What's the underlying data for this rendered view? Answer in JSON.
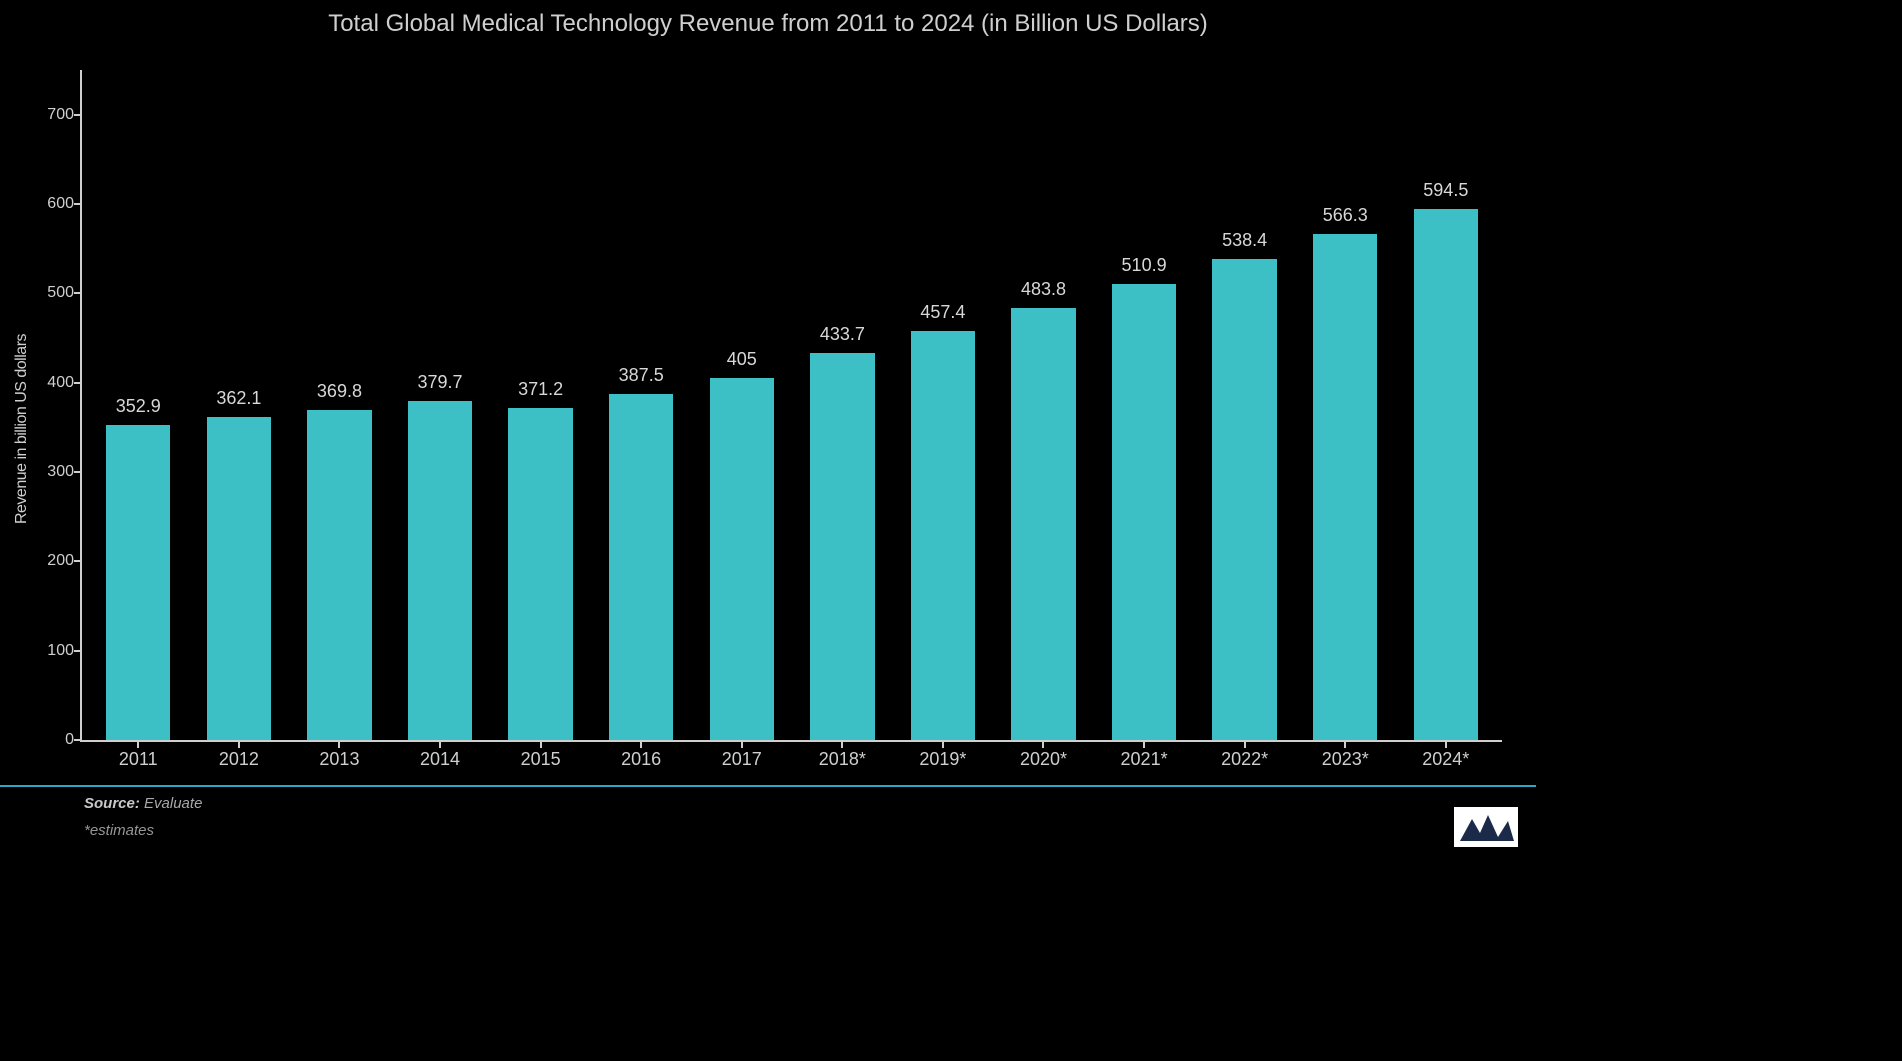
{
  "chart": {
    "type": "bar",
    "title": "Total Global Medical Technology Revenue from 2011 to 2024 (in Billion US Dollars)",
    "title_fontsize": 24,
    "title_color": "#cfcfcf",
    "background_color": "#000000",
    "y_axis": {
      "label": "Revenue in billion US dollars",
      "label_fontsize": 16,
      "min": 0,
      "max": 750,
      "tick_step": 100,
      "ticks": [
        0,
        100,
        200,
        300,
        400,
        500,
        600,
        700
      ],
      "tick_color": "#cfcfcf",
      "tick_fontsize": 16,
      "axis_line_color": "#cfcfcf"
    },
    "x_axis": {
      "tick_color": "#cfcfcf",
      "tick_fontsize": 18,
      "axis_line_color": "#cfcfcf"
    },
    "bar_color": "#3cc0c6",
    "bar_width_ratio": 0.64,
    "value_label_color": "#d8d8d8",
    "value_label_fontsize": 18,
    "categories": [
      "2011",
      "2012",
      "2013",
      "2014",
      "2015",
      "2016",
      "2017",
      "2018*",
      "2019*",
      "2020*",
      "2021*",
      "2022*",
      "2023*",
      "2024*"
    ],
    "values": [
      352.9,
      362.1,
      369.8,
      379.7,
      371.2,
      387.5,
      405,
      433.7,
      457.4,
      483.8,
      510.9,
      538.4,
      566.3,
      594.5
    ]
  },
  "footer": {
    "source_label": "Source:",
    "source_value": "Evaluate",
    "estimates_note": "*estimates",
    "divider_color": "#2aa8c4"
  },
  "logo": {
    "name": "mordor-intelligence-logo",
    "bg_color": "#ffffff",
    "shape_color": "#1c2a4a"
  }
}
